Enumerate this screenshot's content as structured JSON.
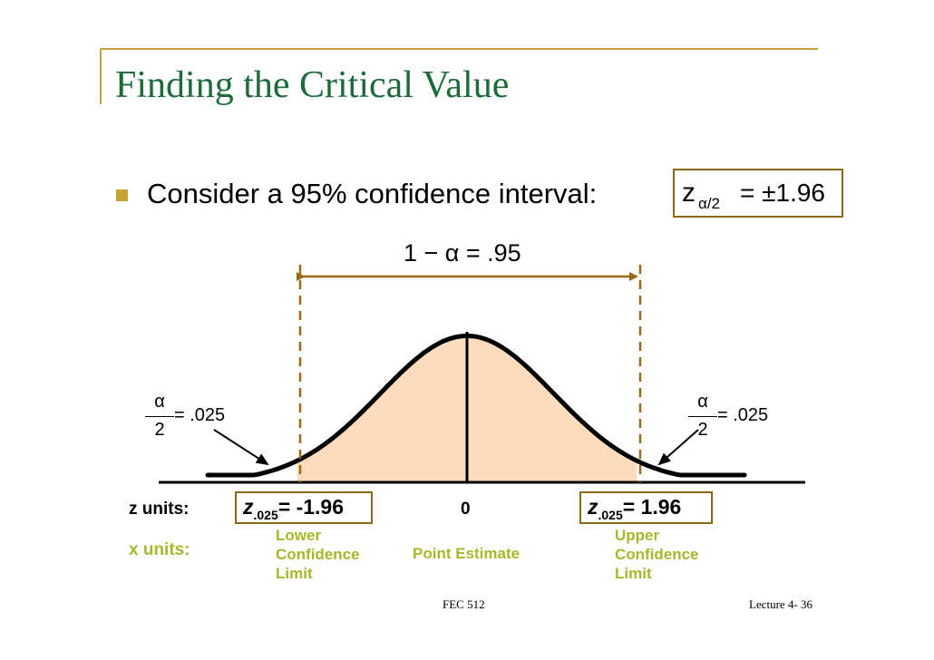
{
  "slide": {
    "title": "Finding the Critical Value",
    "bullet": "Consider a 95% confidence interval:",
    "z_box": {
      "symbol": "z",
      "subscript": "α/2",
      "relation": "= ±1.96"
    },
    "confidence_label": "1 − α = .95",
    "tail_left": {
      "numerator": "α",
      "denominator": "2",
      "value": "= .025"
    },
    "tail_right": {
      "numerator": "α",
      "denominator": "2",
      "value": "= .025"
    },
    "z_units_label": "z units:",
    "x_units_label": "x units:",
    "lower_z": {
      "symbol": "z",
      "subscript": ".025",
      "value": "= -1.96"
    },
    "upper_z": {
      "symbol": "z",
      "subscript": ".025",
      "value": "= 1.96"
    },
    "center_z": "0",
    "lower_limit": [
      "Lower",
      "Confidence",
      "Limit"
    ],
    "point_estimate": "Point Estimate",
    "upper_limit": [
      "Upper",
      "Confidence",
      "Limit"
    ],
    "footer_center": "FEC 512",
    "footer_right": "Lecture 4- 36"
  },
  "colors": {
    "title": "#1e6b3a",
    "accent": "#c8a235",
    "box_border": "#8b6914",
    "shaded_area": "#fcdcbc",
    "green_label": "#a6b72a",
    "arrow": "#9b6a16"
  }
}
